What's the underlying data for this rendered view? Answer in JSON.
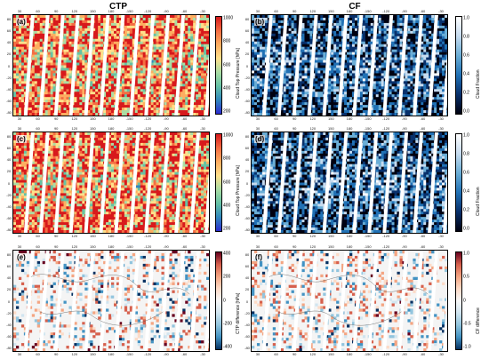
{
  "titles": {
    "left": "CTP",
    "right": "CF"
  },
  "lon_ticks_top": [
    "30",
    "60",
    "90",
    "120",
    "150",
    "180",
    "-150",
    "-120",
    "-90",
    "-60",
    "-30"
  ],
  "lon_ticks_bottom": [
    "30",
    "60",
    "90",
    "120",
    "150",
    "180",
    "-150",
    "-120",
    "-90",
    "-60",
    "-30"
  ],
  "lat_ticks": [
    "80",
    "60",
    "40",
    "20",
    "0",
    "-20",
    "-40",
    "-60",
    "-80"
  ],
  "panels": [
    {
      "id": "a",
      "label": "(a)",
      "field": "ctp",
      "cbar_label": "Cloud Top Pressure [hPa]",
      "cbar_ticks": [
        "1000",
        "800",
        "600",
        "400",
        "200"
      ]
    },
    {
      "id": "b",
      "label": "(b)",
      "field": "cf",
      "cbar_label": "Cloud Fraction",
      "cbar_ticks": [
        "1.0",
        "0.8",
        "0.6",
        "0.4",
        "0.2",
        "0.0"
      ]
    },
    {
      "id": "c",
      "label": "(c)",
      "field": "ctp",
      "cbar_label": "Cloud Top Pressure [hPa]",
      "cbar_ticks": [
        "1000",
        "800",
        "600",
        "400",
        "200"
      ]
    },
    {
      "id": "d",
      "label": "(d)",
      "field": "cf",
      "cbar_label": "Cloud Fraction",
      "cbar_ticks": [
        "1.0",
        "0.8",
        "0.6",
        "0.4",
        "0.2",
        "0.0"
      ]
    },
    {
      "id": "e",
      "label": "(e)",
      "field": "ctpdiff",
      "cbar_label": "CTP difference [hPa]",
      "cbar_ticks": [
        "400",
        "200",
        "0",
        "-200",
        "-400"
      ]
    },
    {
      "id": "f",
      "label": "(f)",
      "field": "cfdiff",
      "cbar_label": "CF difference",
      "cbar_ticks": [
        "1.0",
        "0.5",
        "0",
        "-0.5",
        "-1.0"
      ]
    }
  ],
  "colors": {
    "ctp_scale": [
      "#d7191c",
      "#f46d43",
      "#fdae61",
      "#fee08b",
      "#abdda4",
      "#66c2a5",
      "#3288bd",
      "#2b2bd0"
    ],
    "cf_scale": [
      "#ffffff",
      "#c6dbef",
      "#6baed6",
      "#2171b5",
      "#08306b",
      "#000010"
    ],
    "diff_scale": [
      "#67001f",
      "#d6604d",
      "#f4a582",
      "#fddbc7",
      "#f7f7f7",
      "#d1e5f0",
      "#92c5de",
      "#4393c3",
      "#053061"
    ]
  }
}
